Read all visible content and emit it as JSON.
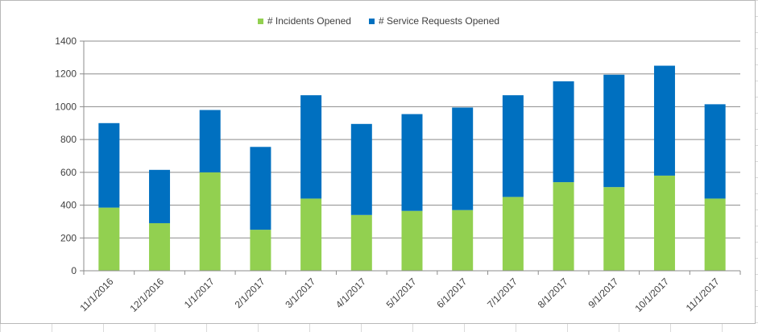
{
  "chart_data": {
    "type": "bar",
    "stacked": true,
    "categories": [
      "11/1/2016",
      "12/1/2016",
      "1/1/2017",
      "2/1/2017",
      "3/1/2017",
      "4/1/2017",
      "5/1/2017",
      "6/1/2017",
      "7/1/2017",
      "8/1/2017",
      "9/1/2017",
      "10/1/2017",
      "11/1/2017"
    ],
    "series": [
      {
        "name": "# Incidents Opened",
        "color": "#92d050",
        "values": [
          385,
          290,
          600,
          250,
          440,
          340,
          365,
          370,
          450,
          540,
          510,
          580,
          440
        ]
      },
      {
        "name": "# Service Requests Opened",
        "color": "#0070c0",
        "values": [
          515,
          325,
          380,
          505,
          630,
          555,
          590,
          625,
          620,
          615,
          685,
          670,
          575
        ]
      }
    ],
    "ylim": [
      0,
      1400
    ],
    "yticks": [
      "0",
      "200",
      "400",
      "600",
      "800",
      "1000",
      "1200",
      "1400"
    ],
    "grid": true,
    "legend_position": "top"
  }
}
